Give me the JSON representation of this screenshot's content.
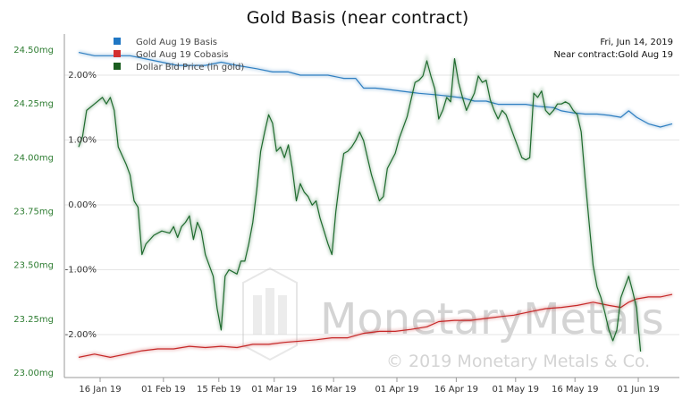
{
  "chart_data": {
    "type": "line",
    "title": "Gold Basis (near contract)",
    "annotation": {
      "date": "Fri, Jun 14, 2019",
      "contract": "Near contract:Gold Aug 19"
    },
    "watermark": {
      "brand": "MonetaryMetals",
      "copyright": "© 2019 Monetary Metals & Co."
    },
    "legend_position": "top-left",
    "x_axis": {
      "min": 0,
      "max": 150,
      "ticks": [
        {
          "x": 0,
          "label": "16 Jan 19"
        },
        {
          "x": 16,
          "label": "01 Feb 19"
        },
        {
          "x": 30,
          "label": "15 Feb 19"
        },
        {
          "x": 44,
          "label": "01 Mar 19"
        },
        {
          "x": 59,
          "label": "16 Mar 19"
        },
        {
          "x": 75,
          "label": "01 Apr 19"
        },
        {
          "x": 90,
          "label": "16 Apr 19"
        },
        {
          "x": 105,
          "label": "01 May 19"
        },
        {
          "x": 120,
          "label": "16 May 19"
        },
        {
          "x": 136,
          "label": "01 Jun 19"
        }
      ]
    },
    "y_left": {
      "min": 23.0,
      "max": 24.5,
      "ticks": [
        "23.00mg",
        "23.25mg",
        "23.50mg",
        "23.75mg",
        "24.00mg",
        "24.25mg",
        "24.50mg"
      ],
      "tick_values": [
        23.0,
        23.25,
        23.5,
        23.75,
        24.0,
        24.25,
        24.5
      ]
    },
    "y_right": {
      "min": -2.6,
      "max": 2.6,
      "ticks": [
        "-2.00%",
        "-1.00%",
        "0.00%",
        "1.00%",
        "2.00%"
      ],
      "tick_values": [
        -2,
        -1,
        0,
        1,
        2
      ]
    },
    "grid": true,
    "series": [
      {
        "name": "Gold Aug 19 Basis",
        "color": "#2f7fc1",
        "axis": "right",
        "points": [
          [
            0,
            2.35
          ],
          [
            4,
            2.3
          ],
          [
            8,
            2.3
          ],
          [
            13,
            2.3
          ],
          [
            17,
            2.25
          ],
          [
            21,
            2.2
          ],
          [
            25,
            2.15
          ],
          [
            29,
            2.15
          ],
          [
            32,
            2.15
          ],
          [
            36,
            2.2
          ],
          [
            40,
            2.15
          ],
          [
            45,
            2.1
          ],
          [
            49,
            2.05
          ],
          [
            53,
            2.05
          ],
          [
            56,
            2.0
          ],
          [
            60,
            2.0
          ],
          [
            63,
            2.0
          ],
          [
            67,
            1.95
          ],
          [
            70,
            1.95
          ],
          [
            72,
            1.8
          ],
          [
            75,
            1.8
          ],
          [
            78,
            1.78
          ],
          [
            82,
            1.75
          ],
          [
            86,
            1.72
          ],
          [
            90,
            1.7
          ],
          [
            93,
            1.68
          ],
          [
            97,
            1.65
          ],
          [
            100,
            1.6
          ],
          [
            103,
            1.6
          ],
          [
            106,
            1.55
          ],
          [
            110,
            1.55
          ],
          [
            113,
            1.55
          ],
          [
            116,
            1.52
          ],
          [
            120,
            1.5
          ],
          [
            122,
            1.45
          ],
          [
            125,
            1.42
          ],
          [
            128,
            1.4
          ],
          [
            131,
            1.4
          ],
          [
            134,
            1.38
          ],
          [
            137,
            1.35
          ],
          [
            139,
            1.45
          ],
          [
            141,
            1.35
          ],
          [
            144,
            1.25
          ],
          [
            147,
            1.2
          ],
          [
            150,
            1.25
          ]
        ]
      },
      {
        "name": "Gold Aug 19 Cobasis",
        "color": "#c62828",
        "axis": "right",
        "points": [
          [
            0,
            -2.35
          ],
          [
            4,
            -2.3
          ],
          [
            8,
            -2.35
          ],
          [
            12,
            -2.3
          ],
          [
            16,
            -2.25
          ],
          [
            20,
            -2.22
          ],
          [
            24,
            -2.22
          ],
          [
            28,
            -2.18
          ],
          [
            32,
            -2.2
          ],
          [
            36,
            -2.18
          ],
          [
            40,
            -2.2
          ],
          [
            44,
            -2.15
          ],
          [
            48,
            -2.15
          ],
          [
            52,
            -2.12
          ],
          [
            56,
            -2.1
          ],
          [
            60,
            -2.08
          ],
          [
            64,
            -2.05
          ],
          [
            68,
            -2.05
          ],
          [
            72,
            -1.98
          ],
          [
            76,
            -1.95
          ],
          [
            80,
            -1.95
          ],
          [
            84,
            -1.92
          ],
          [
            88,
            -1.88
          ],
          [
            91,
            -1.8
          ],
          [
            95,
            -1.78
          ],
          [
            99,
            -1.78
          ],
          [
            103,
            -1.75
          ],
          [
            107,
            -1.72
          ],
          [
            110,
            -1.7
          ],
          [
            114,
            -1.65
          ],
          [
            118,
            -1.6
          ],
          [
            122,
            -1.58
          ],
          [
            126,
            -1.55
          ],
          [
            130,
            -1.5
          ],
          [
            134,
            -1.55
          ],
          [
            137,
            -1.58
          ],
          [
            139,
            -1.5
          ],
          [
            141,
            -1.45
          ],
          [
            144,
            -1.42
          ],
          [
            147,
            -1.42
          ],
          [
            150,
            -1.38
          ]
        ]
      },
      {
        "name": "Dollar Bid Price (in gold)",
        "color": "#1f6b2e",
        "axis": "left",
        "points": [
          [
            0,
            24.05
          ],
          [
            1,
            24.1
          ],
          [
            2,
            24.22
          ],
          [
            4,
            24.25
          ],
          [
            6,
            24.28
          ],
          [
            7,
            24.25
          ],
          [
            8,
            24.28
          ],
          [
            9,
            24.22
          ],
          [
            10,
            24.05
          ],
          [
            12,
            23.97
          ],
          [
            13,
            23.92
          ],
          [
            14,
            23.8
          ],
          [
            15,
            23.77
          ],
          [
            16,
            23.55
          ],
          [
            17,
            23.6
          ],
          [
            19,
            23.64
          ],
          [
            21,
            23.66
          ],
          [
            23,
            23.65
          ],
          [
            24,
            23.68
          ],
          [
            25,
            23.63
          ],
          [
            26,
            23.68
          ],
          [
            27,
            23.7
          ],
          [
            28,
            23.73
          ],
          [
            29,
            23.62
          ],
          [
            30,
            23.7
          ],
          [
            31,
            23.66
          ],
          [
            32,
            23.55
          ],
          [
            33,
            23.5
          ],
          [
            34,
            23.45
          ],
          [
            35,
            23.3
          ],
          [
            36,
            23.2
          ],
          [
            37,
            23.45
          ],
          [
            38,
            23.48
          ],
          [
            40,
            23.46
          ],
          [
            41,
            23.52
          ],
          [
            42,
            23.52
          ],
          [
            43,
            23.6
          ],
          [
            44,
            23.7
          ],
          [
            45,
            23.85
          ],
          [
            46,
            24.03
          ],
          [
            47,
            24.12
          ],
          [
            48,
            24.2
          ],
          [
            49,
            24.16
          ],
          [
            50,
            24.03
          ],
          [
            51,
            24.05
          ],
          [
            52,
            24.0
          ],
          [
            53,
            24.06
          ],
          [
            54,
            23.95
          ],
          [
            55,
            23.8
          ],
          [
            56,
            23.88
          ],
          [
            57,
            23.84
          ],
          [
            58,
            23.82
          ],
          [
            59,
            23.78
          ],
          [
            60,
            23.8
          ],
          [
            61,
            23.72
          ],
          [
            62,
            23.66
          ],
          [
            63,
            23.6
          ],
          [
            64,
            23.55
          ],
          [
            65,
            23.75
          ],
          [
            66,
            23.9
          ],
          [
            67,
            24.02
          ],
          [
            68,
            24.03
          ],
          [
            69,
            24.05
          ],
          [
            70,
            24.08
          ],
          [
            71,
            24.12
          ],
          [
            72,
            24.08
          ],
          [
            73,
            24.0
          ],
          [
            74,
            23.92
          ],
          [
            75,
            23.86
          ],
          [
            76,
            23.8
          ],
          [
            77,
            23.82
          ],
          [
            78,
            23.95
          ],
          [
            80,
            24.02
          ],
          [
            81,
            24.09
          ],
          [
            83,
            24.19
          ],
          [
            85,
            24.35
          ],
          [
            86,
            24.36
          ],
          [
            87,
            24.38
          ],
          [
            88,
            24.45
          ],
          [
            89,
            24.38
          ],
          [
            90,
            24.32
          ],
          [
            91,
            24.18
          ],
          [
            92,
            24.22
          ],
          [
            93,
            24.28
          ],
          [
            94,
            24.26
          ],
          [
            95,
            24.46
          ],
          [
            96,
            24.35
          ],
          [
            97,
            24.28
          ],
          [
            98,
            24.22
          ],
          [
            99,
            24.26
          ],
          [
            100,
            24.3
          ],
          [
            101,
            24.38
          ],
          [
            102,
            24.35
          ],
          [
            103,
            24.36
          ],
          [
            104,
            24.27
          ],
          [
            105,
            24.22
          ],
          [
            106,
            24.18
          ],
          [
            107,
            24.22
          ],
          [
            108,
            24.2
          ],
          [
            109,
            24.15
          ],
          [
            110,
            24.1
          ],
          [
            111,
            24.05
          ],
          [
            112,
            24.0
          ],
          [
            113,
            23.99
          ],
          [
            114,
            24.0
          ],
          [
            115,
            24.3
          ],
          [
            116,
            24.28
          ],
          [
            117,
            24.31
          ],
          [
            118,
            24.22
          ],
          [
            119,
            24.2
          ],
          [
            120,
            24.22
          ],
          [
            121,
            24.25
          ],
          [
            122,
            24.25
          ],
          [
            123,
            24.26
          ],
          [
            124,
            24.25
          ],
          [
            125,
            24.22
          ],
          [
            126,
            24.2
          ],
          [
            127,
            24.12
          ],
          [
            128,
            23.9
          ],
          [
            129,
            23.7
          ],
          [
            130,
            23.5
          ],
          [
            131,
            23.4
          ],
          [
            132,
            23.35
          ],
          [
            133,
            23.28
          ],
          [
            134,
            23.2
          ],
          [
            135,
            23.15
          ],
          [
            136,
            23.2
          ],
          [
            137,
            23.35
          ],
          [
            138,
            23.4
          ],
          [
            139,
            23.45
          ],
          [
            140,
            23.38
          ],
          [
            141,
            23.3
          ],
          [
            142,
            23.1
          ]
        ]
      }
    ]
  }
}
